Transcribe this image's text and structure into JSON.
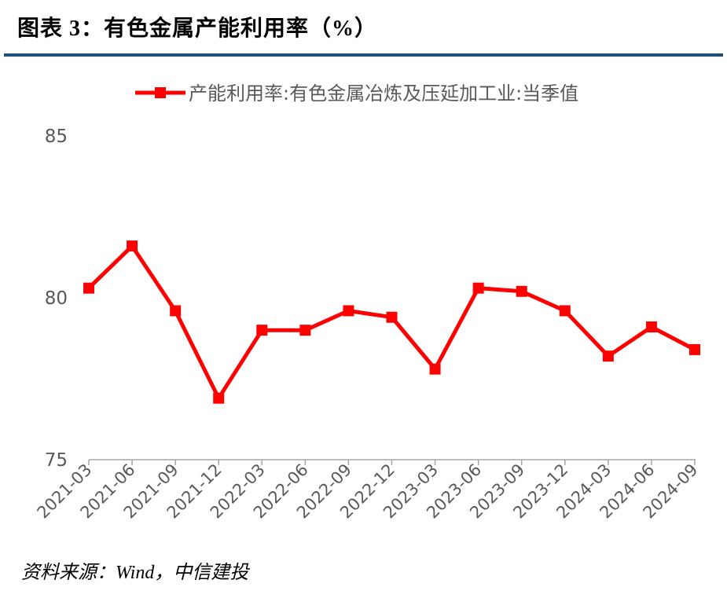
{
  "colors": {
    "series": "#ff0000",
    "title_rule": "#1f4e79",
    "axis_text": "#595959",
    "axis_line": "#a6a6a6"
  },
  "footer": {
    "source": "资料来源：Wind，中信建投"
  },
  "chart_data": {
    "type": "line",
    "title": "图表 3：有色金属产能利用率（%）",
    "xlabel": "",
    "ylabel": "",
    "categories": [
      "2021-03",
      "2021-06",
      "2021-09",
      "2021-12",
      "2022-03",
      "2022-06",
      "2022-09",
      "2022-12",
      "2023-03",
      "2023-06",
      "2023-09",
      "2023-12",
      "2024-03",
      "2024-06",
      "2024-09"
    ],
    "series": [
      {
        "name": "产能利用率:有色金属冶炼及压延加工业:当季值",
        "marker": "square",
        "values": [
          80.3,
          81.6,
          79.6,
          76.9,
          79.0,
          79.0,
          79.6,
          79.4,
          77.8,
          80.3,
          80.2,
          79.6,
          78.2,
          79.1,
          78.4
        ]
      }
    ],
    "ylim": [
      75,
      85
    ],
    "yticks": [
      75,
      80,
      85
    ],
    "grid": false,
    "legend": "top-center"
  }
}
